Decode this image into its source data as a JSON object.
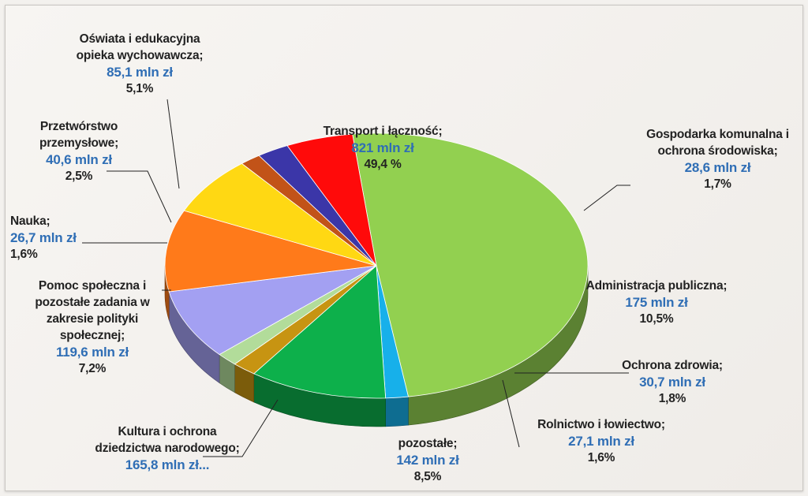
{
  "chart_data": {
    "type": "pie",
    "three_d": true,
    "unit": "mln zł",
    "slices": [
      {
        "name": "Transport i łączność;",
        "amount": "821 mln zł",
        "value": 821,
        "percent": "49,4 %",
        "color": "#92d050"
      },
      {
        "name": "Gospodarka komunalna i\nochrona środowiska;",
        "amount": "28,6 mln zł",
        "value": 28.6,
        "percent": "1,7%",
        "color": "#17b0ea"
      },
      {
        "name": "Administracja publiczna;",
        "amount": "175 mln zł",
        "value": 175,
        "percent": "10,5%",
        "color": "#0db04b"
      },
      {
        "name": "Ochrona zdrowia;",
        "amount": "30,7 mln zł",
        "value": 30.7,
        "percent": "1,8%",
        "color": "#c79412"
      },
      {
        "name": "Rolnictwo i łowiectwo;",
        "amount": "27,1 mln zł",
        "value": 27.1,
        "percent": "1,6%",
        "color": "#b2dc9a"
      },
      {
        "name": "pozostałe;",
        "amount": "142 mln zł",
        "value": 142,
        "percent": "8,5%",
        "color": "#a3a0f2"
      },
      {
        "name": "Kultura i ochrona\ndziedzictwa narodowego;",
        "amount": "165,8 mln zł...",
        "value": 165.8,
        "percent": "",
        "color": "#ff7a1a"
      },
      {
        "name": "Pomoc społeczna i\npozostałe zadania w\nzakresie polityki\nspołecznej;",
        "amount": "119,6 mln zł",
        "value": 119.6,
        "percent": "7,2%",
        "color": "#ffd813"
      },
      {
        "name": "Nauka;",
        "amount": "26,7 mln zł",
        "value": 26.7,
        "percent": "1,6%",
        "color": "#c25318"
      },
      {
        "name": "Przetwórstwo\nprzemysłowe;",
        "amount": "40,6 mln zł",
        "value": 40.6,
        "percent": "2,5%",
        "color": "#3b36a8"
      },
      {
        "name": "Oświata i edukacyjna\nopieka wychowawcza;",
        "amount": "85,1 mln zł",
        "value": 85.1,
        "percent": "5,1%",
        "color": "#ff0a0a"
      }
    ]
  }
}
